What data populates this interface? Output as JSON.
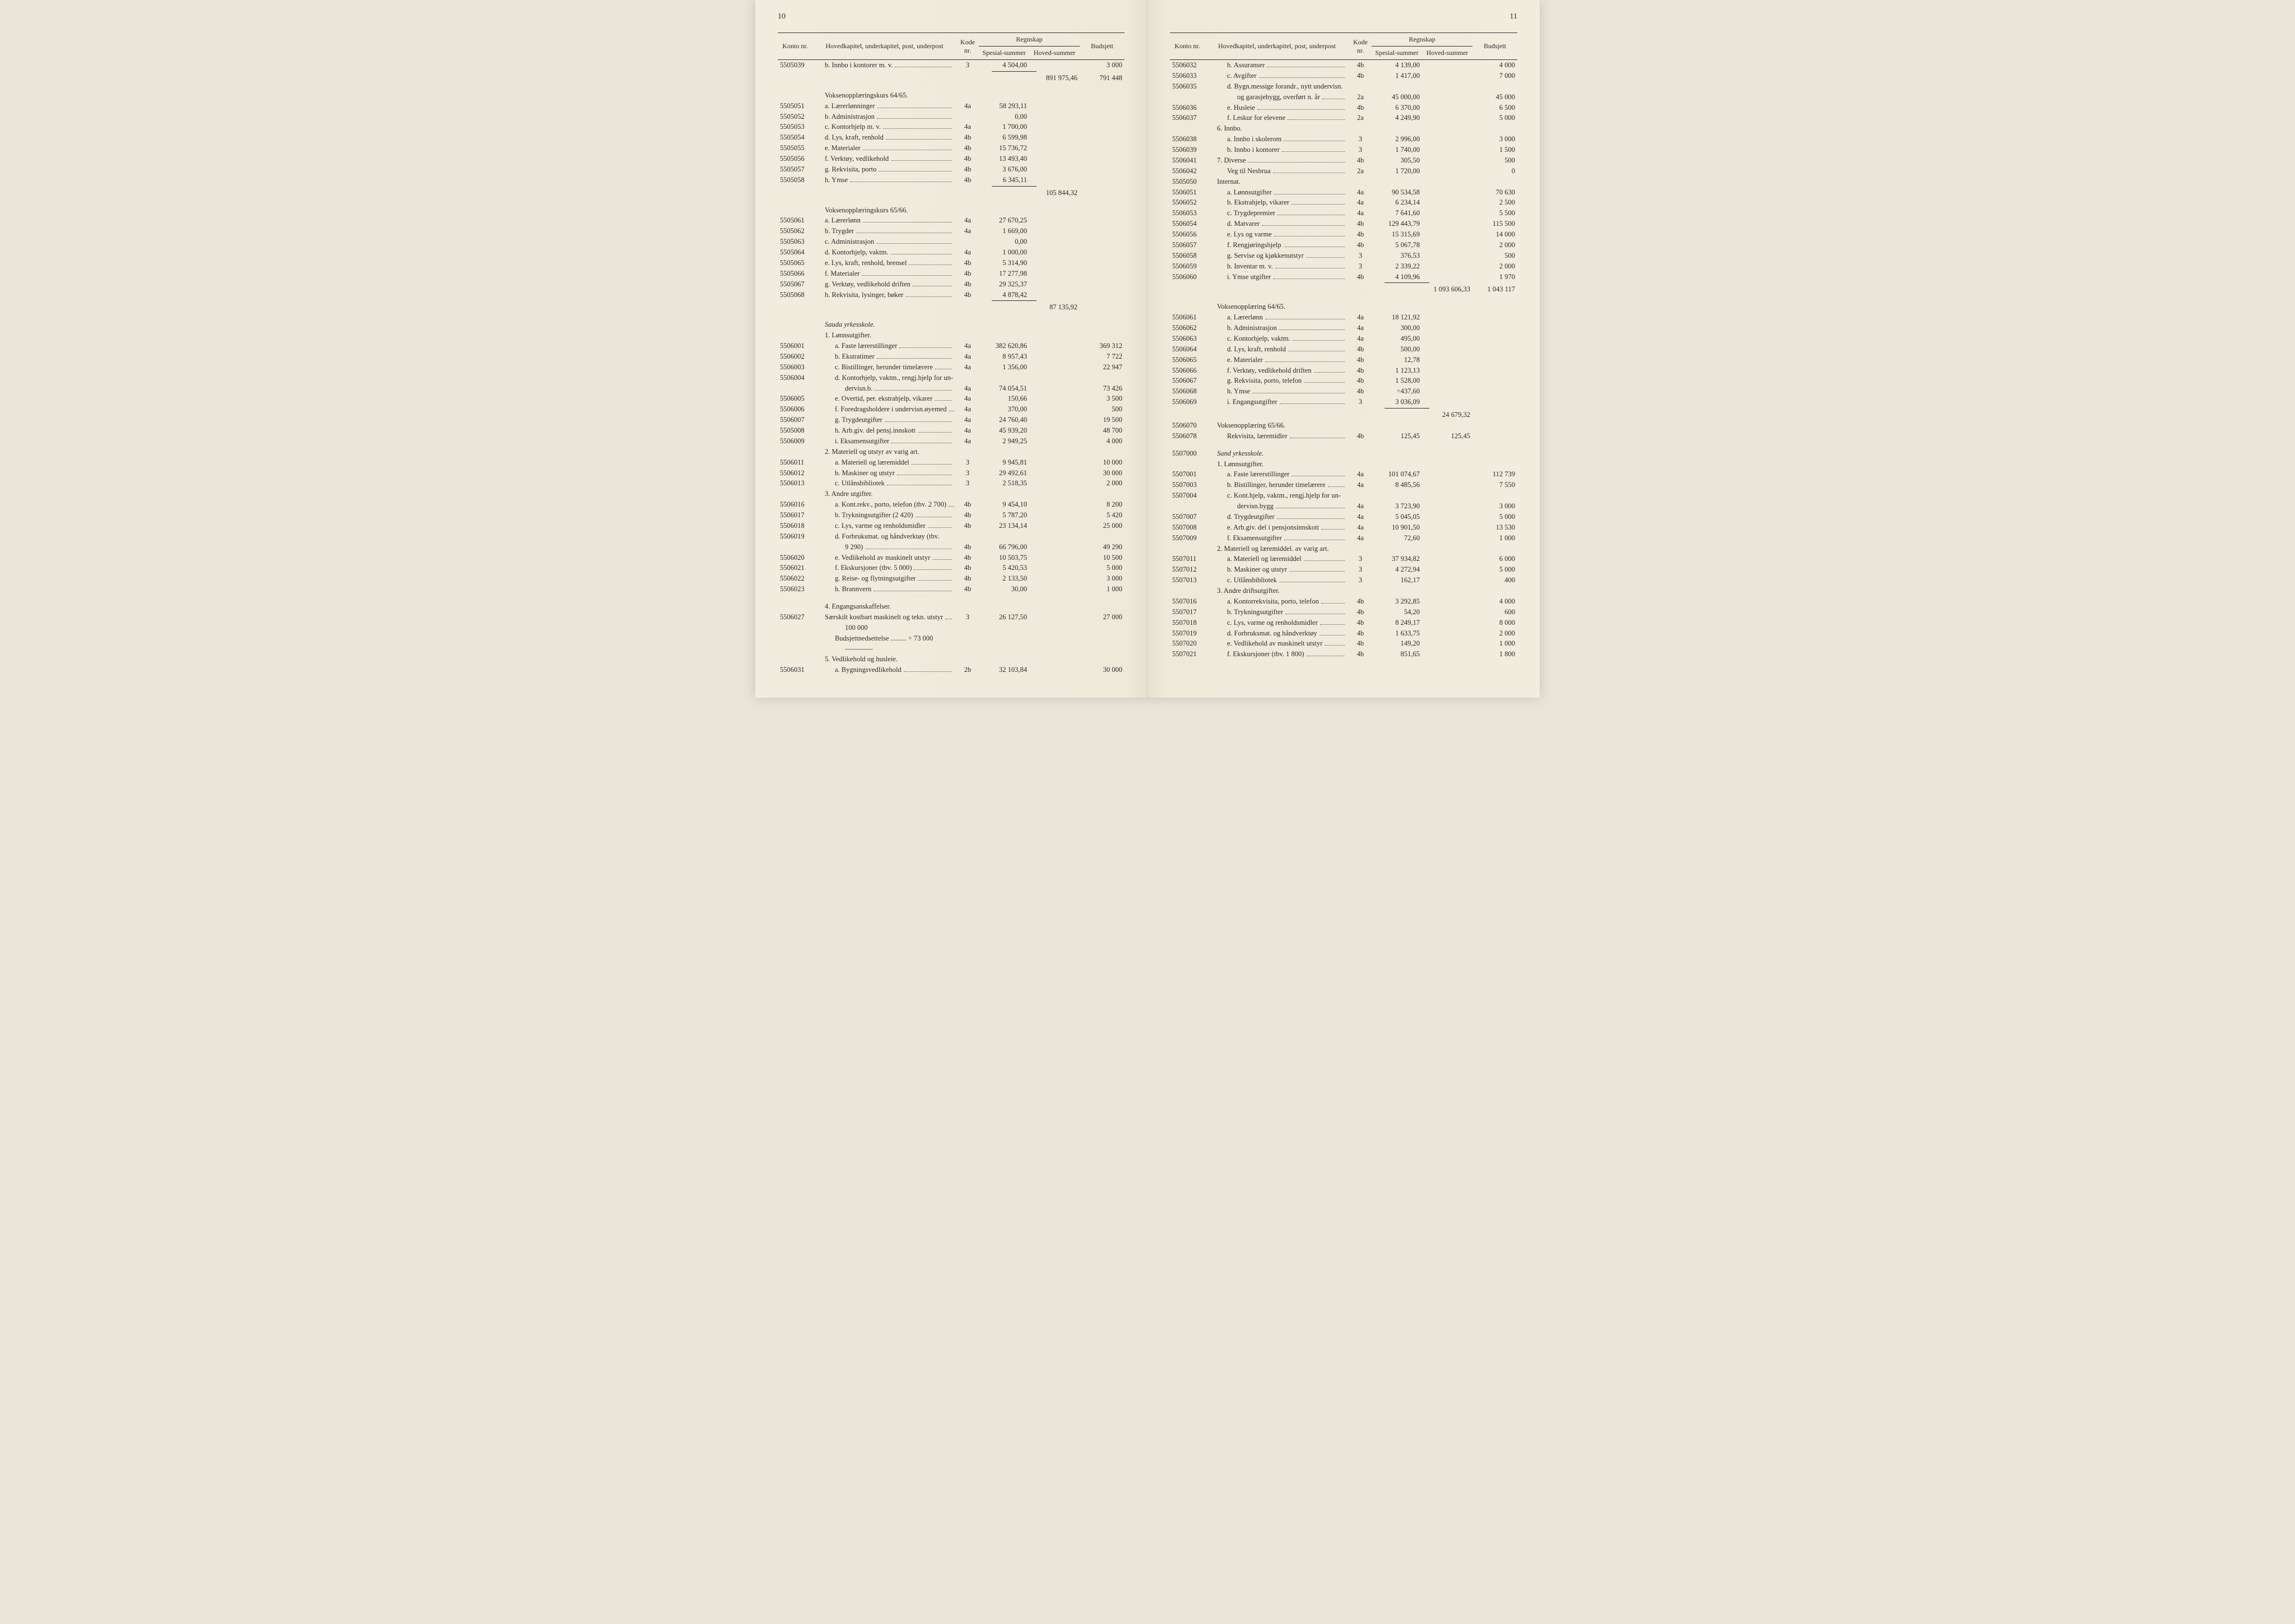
{
  "page_left_num": "10",
  "page_right_num": "11",
  "header": {
    "konto": "Konto nr.",
    "desc": "Hovedkapitel, underkapitel, post, underpost",
    "kode": "Kode nr.",
    "regnskap": "Regnskap",
    "spesial": "Spesial-summer",
    "hoved": "Hoved-summer",
    "budsjett": "Budsjett"
  },
  "left_rows": [
    {
      "konto": "5505039",
      "desc": "b.  Innbo i kontorer m. v.",
      "kode": "3",
      "spes": "4 504,00",
      "bud": "3 000",
      "indent": 1,
      "dots": true
    },
    {
      "rule": "spes"
    },
    {
      "hoved": "891 975,46",
      "bud": "791 448"
    },
    {
      "spacer": true
    },
    {
      "desc": "Voksenopplæringskurs 64/65.",
      "indent": 1
    },
    {
      "konto": "5505051",
      "desc": "a.  Lærerlønninger",
      "kode": "4a",
      "spes": "58 293,11",
      "indent": 1,
      "dots": true
    },
    {
      "konto": "5505052",
      "desc": "b.  Administrasjon",
      "spes": "0,00",
      "indent": 1,
      "dots": true
    },
    {
      "konto": "5505053",
      "desc": "c.  Kontorhjelp m. v.",
      "kode": "4a",
      "spes": "1 700,00",
      "indent": 1,
      "dots": true
    },
    {
      "konto": "5505054",
      "desc": "d.  Lys, kraft, renhold",
      "kode": "4b",
      "spes": "6 599,98",
      "indent": 1,
      "dots": true
    },
    {
      "konto": "5505055",
      "desc": "e.  Materialer",
      "kode": "4b",
      "spes": "15 736,72",
      "indent": 1,
      "dots": true
    },
    {
      "konto": "5505056",
      "desc": "f.  Verktøy, vedlikehold",
      "kode": "4b",
      "spes": "13 493,40",
      "indent": 1,
      "dots": true
    },
    {
      "konto": "5505057",
      "desc": "g.  Rekvisita, porto",
      "kode": "4b",
      "spes": "3 676,00",
      "indent": 1,
      "dots": true
    },
    {
      "konto": "5505058",
      "desc": "h.  Ymse",
      "kode": "4b",
      "spes": "6 345,11",
      "indent": 1,
      "dots": true
    },
    {
      "rule": "spes"
    },
    {
      "hoved": "105 844,32"
    },
    {
      "spacer": true
    },
    {
      "desc": "Voksenopplæringskurs 65/66.",
      "indent": 1
    },
    {
      "konto": "5505061",
      "desc": "a.  Lærerlønn",
      "kode": "4a",
      "spes": "27 670,25",
      "indent": 1,
      "dots": true
    },
    {
      "konto": "5505062",
      "desc": "b.  Trygder",
      "kode": "4a",
      "spes": "1 669,00",
      "indent": 1,
      "dots": true
    },
    {
      "konto": "5505063",
      "desc": "c.  Administrasjon",
      "spes": "0,00",
      "indent": 1,
      "dots": true
    },
    {
      "konto": "5505064",
      "desc": "d.  Kontorhjelp, vaktm.",
      "kode": "4a",
      "spes": "1 000,00",
      "indent": 1,
      "dots": true
    },
    {
      "konto": "5505065",
      "desc": "e.  Lys, kraft, renhold, brensel",
      "kode": "4b",
      "spes": "5 314,90",
      "indent": 1,
      "dots": true
    },
    {
      "konto": "5505066",
      "desc": "f.  Materialer",
      "kode": "4b",
      "spes": "17 277,98",
      "indent": 1,
      "dots": true
    },
    {
      "konto": "5505067",
      "desc": "g.  Verktøy, vedlikehold driften",
      "kode": "4b",
      "spes": "29 325,37",
      "indent": 1,
      "dots": true
    },
    {
      "konto": "5505068",
      "desc": "h.  Rekvisita, lysinger, bøker",
      "kode": "4b",
      "spes": "4 878,42",
      "indent": 1,
      "dots": true
    },
    {
      "rule": "spes"
    },
    {
      "hoved": "87 135,92"
    },
    {
      "spacer": true
    },
    {
      "desc": "Sauda yrkesskole.",
      "indent": 1,
      "italic": true
    },
    {
      "desc": "1.  Lønnsutgifter.",
      "indent": 1
    },
    {
      "konto": "5506001",
      "desc": "a.  Faste lærerstillinger",
      "kode": "4a",
      "spes": "382 620,86",
      "bud": "369 312",
      "indent": 2,
      "dots": true
    },
    {
      "konto": "5506002",
      "desc": "b.  Ekstratimer",
      "kode": "4a",
      "spes": "8 957,43",
      "bud": "7 722",
      "indent": 2,
      "dots": true
    },
    {
      "konto": "5506003",
      "desc": "c.  Bistillinger, herunder timelærere",
      "kode": "4a",
      "spes": "1 356,00",
      "bud": "22 947",
      "indent": 2,
      "dots": true
    },
    {
      "konto": "5506004",
      "desc": "d.  Kontorhjelp, vaktm., rengj.hjelp for un-",
      "indent": 2
    },
    {
      "desc": "dervisn.b.",
      "kode": "4a",
      "spes": "74 054,51",
      "bud": "73 426",
      "indent": 3,
      "dots": true
    },
    {
      "konto": "5506005",
      "desc": "e.  Overtid, per. ekstrahjelp, vikarer",
      "kode": "4a",
      "spes": "150,66",
      "bud": "3 500",
      "indent": 2,
      "dots": true
    },
    {
      "konto": "5506006",
      "desc": "f.  Foredragsholdere i undervisn.øyemed",
      "kode": "4a",
      "spes": "370,00",
      "bud": "500",
      "indent": 2,
      "dots": true
    },
    {
      "konto": "5506007",
      "desc": "g.  Trygdeutgifter",
      "kode": "4a",
      "spes": "24 760,40",
      "bud": "19 500",
      "indent": 2,
      "dots": true
    },
    {
      "konto": "5505008",
      "desc": "h.  Arb.giv. del pensj.innskott",
      "kode": "4a",
      "spes": "45 939,20",
      "bud": "48 700",
      "indent": 2,
      "dots": true
    },
    {
      "konto": "5506009",
      "desc": "i.  Eksamensutgifter",
      "kode": "4a",
      "spes": "2 949,25",
      "bud": "4 000",
      "indent": 2,
      "dots": true
    },
    {
      "desc": "2.  Materiell og utstyr av varig art.",
      "indent": 1
    },
    {
      "konto": "5506011",
      "desc": "a.  Materiell og læremiddel",
      "kode": "3",
      "spes": "9 945,81",
      "bud": "10 000",
      "indent": 2,
      "dots": true
    },
    {
      "konto": "5506012",
      "desc": "b.  Maskiner og utstyr",
      "kode": "3",
      "spes": "29 492,61",
      "bud": "30 000",
      "indent": 2,
      "dots": true
    },
    {
      "konto": "5506013",
      "desc": "c.  Utlånsbibliotek",
      "kode": "3",
      "spes": "2 518,35",
      "bud": "2 000",
      "indent": 2,
      "dots": true
    },
    {
      "desc": "3.  Andre utgifter.",
      "indent": 1
    },
    {
      "konto": "5506016",
      "desc": "a.  Kont.rekv., porto, telefon (tbv. 2 700)",
      "kode": "4b",
      "spes": "9 454,10",
      "bud": "8 200",
      "indent": 2,
      "dots": true
    },
    {
      "konto": "5506017",
      "desc": "b.  Trykningsutgifter (2 420)",
      "kode": "4b",
      "spes": "5 787,20",
      "bud": "5 420",
      "indent": 2,
      "dots": true
    },
    {
      "konto": "5506018",
      "desc": "c.  Lys, varme og renholdsmidler",
      "kode": "4b",
      "spes": "23 134,14",
      "bud": "25 000",
      "indent": 2,
      "dots": true
    },
    {
      "konto": "5506019",
      "desc": "d.  Forbruksmat. og håndverktøy (tbv.",
      "indent": 2
    },
    {
      "desc": "9 290)",
      "kode": "4b",
      "spes": "66 796,00",
      "bud": "49 290",
      "indent": 3,
      "dots": true
    },
    {
      "konto": "5506020",
      "desc": "e.  Vedlikehold av maskinelt utstyr",
      "kode": "4b",
      "spes": "10 503,75",
      "bud": "10 500",
      "indent": 2,
      "dots": true
    },
    {
      "konto": "5506021",
      "desc": "f.  Ekskursjoner (tbv. 5 000)",
      "kode": "4b",
      "spes": "5 420,53",
      "bud": "5 000",
      "indent": 2,
      "dots": true
    },
    {
      "konto": "5506022",
      "desc": "g.  Reise- og flytningsutgifter",
      "kode": "4b",
      "spes": "2 133,50",
      "bud": "3 000",
      "indent": 2,
      "dots": true
    },
    {
      "konto": "5506023",
      "desc": "h.  Brannvern",
      "kode": "4b",
      "spes": "30,00",
      "bud": "1 000",
      "indent": 2,
      "dots": true
    },
    {
      "spacer": true
    },
    {
      "desc": "4.  Engangsanskaffelser.",
      "indent": 1
    },
    {
      "konto": "5506027",
      "desc": "Særskilt kostbart maskinelt og tekn. utstyr",
      "kode": "3",
      "spes": "26 127,50",
      "bud": "27 000",
      "indent": 1,
      "dots": true
    },
    {
      "desc": "100 000",
      "indent": 3
    },
    {
      "desc": "Budsjettnedsettelse  ......... ÷  73 000",
      "indent": 2
    },
    {
      "desc": "————",
      "indent": 3
    },
    {
      "desc": "5.  Vedlikehold og husleie.",
      "indent": 1
    },
    {
      "konto": "5506031",
      "desc": "a.  Bygningsvedlikehold",
      "kode": "2b",
      "spes": "32 103,84",
      "bud": "30 000",
      "indent": 2,
      "dots": true
    }
  ],
  "right_rows": [
    {
      "konto": "5506032",
      "desc": "b.  Assuranser",
      "kode": "4b",
      "spes": "4 139,00",
      "bud": "4 000",
      "indent": 2,
      "dots": true
    },
    {
      "konto": "5506033",
      "desc": "c.  Avgifter",
      "kode": "4b",
      "spes": "1 417,00",
      "bud": "7 000",
      "indent": 2,
      "dots": true
    },
    {
      "konto": "5506035",
      "desc": "d.  Bygn.messige forandr., nytt undervisn.",
      "indent": 2
    },
    {
      "desc": "og garasjebygg, overført n. år",
      "kode": "2a",
      "spes": "45 000,00",
      "bud": "45 000",
      "indent": 3,
      "dots": true
    },
    {
      "konto": "5506036",
      "desc": "e.  Husleie",
      "kode": "4b",
      "spes": "6 370,00",
      "bud": "6 500",
      "indent": 2,
      "dots": true
    },
    {
      "konto": "5506037",
      "desc": "f.  Leskur for elevene",
      "kode": "2a",
      "spes": "4 249,90",
      "bud": "5 000",
      "indent": 2,
      "dots": true
    },
    {
      "desc": "6.  Innbo.",
      "indent": 1
    },
    {
      "konto": "5506038",
      "desc": "a.  Innbo i skolerom",
      "kode": "3",
      "spes": "2 996,00",
      "bud": "3 000",
      "indent": 2,
      "dots": true
    },
    {
      "konto": "5506039",
      "desc": "b.  Innbo i kontorer",
      "kode": "3",
      "spes": "1 740,00",
      "bud": "1 500",
      "indent": 2,
      "dots": true
    },
    {
      "konto": "5506041",
      "desc": "7.  Diverse",
      "kode": "4b",
      "spes": "305,50",
      "bud": "500",
      "indent": 1,
      "dots": true
    },
    {
      "konto": "5506042",
      "desc": "Veg til Nesbrua",
      "kode": "2a",
      "spes": "1 720,00",
      "bud": "0",
      "indent": 2,
      "dots": true
    },
    {
      "konto": "5505050",
      "desc": "Internat.",
      "indent": 1
    },
    {
      "konto": "5506051",
      "desc": "a.  Lønnsutgifter",
      "kode": "4a",
      "spes": "90 534,58",
      "bud": "70 630",
      "indent": 2,
      "dots": true
    },
    {
      "konto": "5506052",
      "desc": "b.  Ekstrahjelp, vikarer",
      "kode": "4a",
      "spes": "6 234,14",
      "bud": "2 500",
      "indent": 2,
      "dots": true
    },
    {
      "konto": "5506053",
      "desc": "c.  Trygdepremier",
      "kode": "4a",
      "spes": "7 641,60",
      "bud": "5 500",
      "indent": 2,
      "dots": true
    },
    {
      "konto": "5506054",
      "desc": "d.  Matvarer",
      "kode": "4b",
      "spes": "129 443,79",
      "bud": "115 500",
      "indent": 2,
      "dots": true
    },
    {
      "konto": "5506056",
      "desc": "e.  Lys og varme",
      "kode": "4b",
      "spes": "15 315,69",
      "bud": "14 000",
      "indent": 2,
      "dots": true
    },
    {
      "konto": "5506057",
      "desc": "f.  Rengjøringshjelp",
      "kode": "4b",
      "spes": "5 067,78",
      "bud": "2 000",
      "indent": 2,
      "dots": true
    },
    {
      "konto": "5506058",
      "desc": "g.  Servise og kjøkkenutstyr",
      "kode": "3",
      "spes": "376,53",
      "bud": "500",
      "indent": 2,
      "dots": true
    },
    {
      "konto": "5506059",
      "desc": "h.  Inventar m. v.",
      "kode": "3",
      "spes": "2 339,22",
      "bud": "2 000",
      "indent": 2,
      "dots": true
    },
    {
      "konto": "5506060",
      "desc": "i.  Ymse utgifter",
      "kode": "4b",
      "spes": "4 109,96",
      "bud": "1 970",
      "indent": 2,
      "dots": true
    },
    {
      "rule": "spes"
    },
    {
      "hoved": "1 093 606,33",
      "bud": "1 043 117"
    },
    {
      "spacer": true
    },
    {
      "desc": "Voksenopplæring 64/65.",
      "indent": 1
    },
    {
      "konto": "5506061",
      "desc": "a.  Lærerlønn",
      "kode": "4a",
      "spes": "18 121,92",
      "indent": 2,
      "dots": true
    },
    {
      "konto": "5506062",
      "desc": "b.  Administrasjon",
      "kode": "4a",
      "spes": "300,00",
      "indent": 2,
      "dots": true
    },
    {
      "konto": "5506063",
      "desc": "c.  Kontorhjelp, vaktm.",
      "kode": "4a",
      "spes": "495,00",
      "indent": 2,
      "dots": true
    },
    {
      "konto": "5506064",
      "desc": "d.  Lys, kraft, renhold",
      "kode": "4b",
      "spes": "500,00",
      "indent": 2,
      "dots": true
    },
    {
      "konto": "5506065",
      "desc": "e.  Materialer",
      "kode": "4b",
      "spes": "12,78",
      "indent": 2,
      "dots": true
    },
    {
      "konto": "5506066",
      "desc": "f.  Verktøy, vedlikehold driften",
      "kode": "4b",
      "spes": "1 123,13",
      "indent": 2,
      "dots": true
    },
    {
      "konto": "5506067",
      "desc": "g.  Rekvisita, porto, telefon",
      "kode": "4b",
      "spes": "1 528,00",
      "indent": 2,
      "dots": true
    },
    {
      "konto": "5506068",
      "desc": "h.  Ymse",
      "kode": "4b",
      "spes": "÷437,60",
      "indent": 2,
      "dots": true
    },
    {
      "konto": "5506069",
      "desc": "i.  Engangsutgifter",
      "kode": "3",
      "spes": "3 036,09",
      "indent": 2,
      "dots": true
    },
    {
      "rule": "spes"
    },
    {
      "hoved": "24 679,32"
    },
    {
      "konto": "5506070",
      "desc": "Voksenopplæring 65/66.",
      "indent": 1
    },
    {
      "konto": "5506078",
      "desc": "Rekvisita, læremidler",
      "kode": "4b",
      "spes": "125,45",
      "hoved": "125,45",
      "indent": 2,
      "dots": true
    },
    {
      "spacer": true
    },
    {
      "konto": "5507000",
      "desc": "Sand yrkesskole.",
      "indent": 1,
      "italic": true
    },
    {
      "desc": "1.  Lønnsutgifter.",
      "indent": 1
    },
    {
      "konto": "5507001",
      "desc": "a.  Faste lærerstillinger",
      "kode": "4a",
      "spes": "101 074,67",
      "bud": "112 739",
      "indent": 2,
      "dots": true
    },
    {
      "konto": "5507003",
      "desc": "b.  Bistillinger, herunder timelærere",
      "kode": "4a",
      "spes": "8 485,56",
      "bud": "7 550",
      "indent": 2,
      "dots": true
    },
    {
      "konto": "5507004",
      "desc": "c.  Kont.hjelp, vaktm., rengj.hjelp for un-",
      "indent": 2
    },
    {
      "desc": "dervisn.bygg",
      "kode": "4a",
      "spes": "3 723,90",
      "bud": "3 000",
      "indent": 3,
      "dots": true
    },
    {
      "konto": "5507007",
      "desc": "d.  Trygdeutgifter",
      "kode": "4a",
      "spes": "5 045,05",
      "bud": "5 000",
      "indent": 2,
      "dots": true
    },
    {
      "konto": "5507008",
      "desc": "e.  Arb.giv. del i pensjonsinnskott",
      "kode": "4a",
      "spes": "10 901,50",
      "bud": "13 530",
      "indent": 2,
      "dots": true
    },
    {
      "konto": "5507009",
      "desc": "f.  Eksamensutgifter",
      "kode": "4a",
      "spes": "72,60",
      "bud": "1 000",
      "indent": 2,
      "dots": true
    },
    {
      "desc": "2.  Materiell og læremiddel. av varig art.",
      "indent": 1
    },
    {
      "konto": "5507011",
      "desc": "a.  Materiell og læremiddel",
      "kode": "3",
      "spes": "37 934,82",
      "bud": "6 000",
      "indent": 2,
      "dots": true
    },
    {
      "konto": "5507012",
      "desc": "b.  Maskiner og utstyr",
      "kode": "3",
      "spes": "4 272,94",
      "bud": "5 000",
      "indent": 2,
      "dots": true
    },
    {
      "konto": "5507013",
      "desc": "c.  Utlånsbibliotek",
      "kode": "3",
      "spes": "162,17",
      "bud": "400",
      "indent": 2,
      "dots": true
    },
    {
      "desc": "3.  Andre driftsutgifter.",
      "indent": 1
    },
    {
      "konto": "5507016",
      "desc": "a.  Kontorrekvisita, porto, telefon",
      "kode": "4b",
      "spes": "3 292,85",
      "bud": "4 000",
      "indent": 2,
      "dots": true
    },
    {
      "konto": "5507017",
      "desc": "b.  Trykningsutgifter",
      "kode": "4b",
      "spes": "54,20",
      "bud": "600",
      "indent": 2,
      "dots": true
    },
    {
      "konto": "5507018",
      "desc": "c.  Lys, varme og renholdsmidler",
      "kode": "4b",
      "spes": "8 249,17",
      "bud": "8 000",
      "indent": 2,
      "dots": true
    },
    {
      "konto": "5507019",
      "desc": "d.  Forbruksmat. og håndverktøy",
      "kode": "4b",
      "spes": "1 633,75",
      "bud": "2 000",
      "indent": 2,
      "dots": true
    },
    {
      "konto": "5507020",
      "desc": "e.  Vedlikehold av maskinelt utstyr",
      "kode": "4b",
      "spes": "149,20",
      "bud": "1 000",
      "indent": 2,
      "dots": true
    },
    {
      "konto": "5507021",
      "desc": "f.  Ekskursjoner (tbv. 1 800)",
      "kode": "4b",
      "spes": "851,65",
      "bud": "1 800",
      "indent": 2,
      "dots": true
    }
  ]
}
